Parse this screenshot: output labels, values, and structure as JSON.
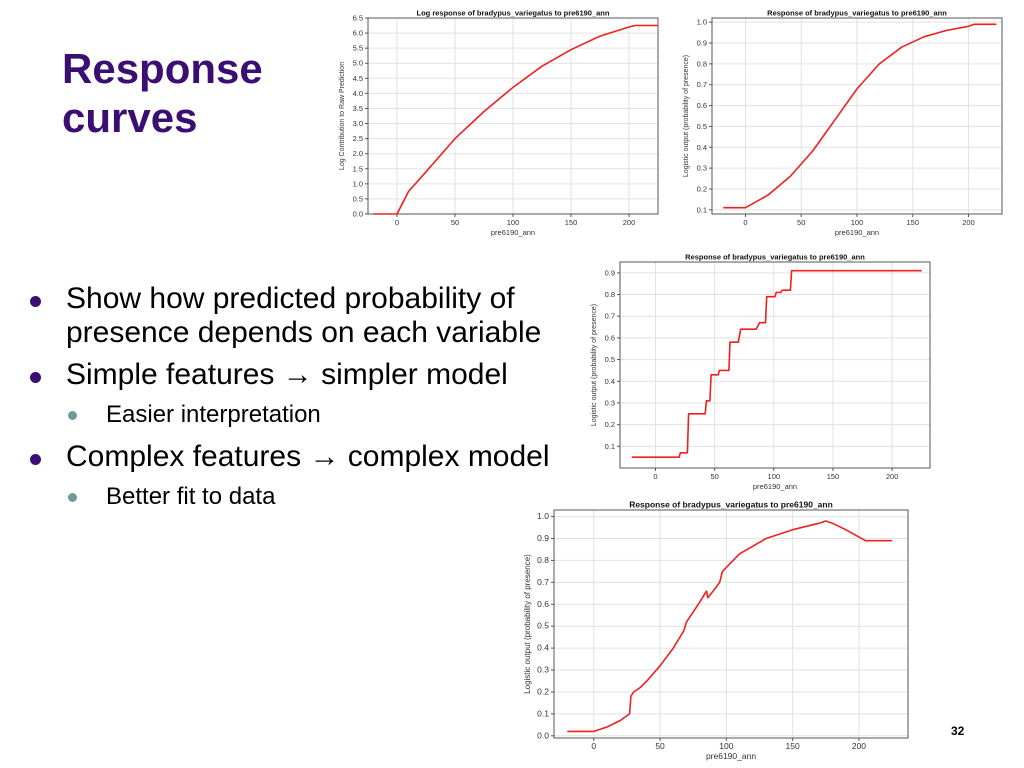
{
  "slide": {
    "title_line1": "Response",
    "title_line2": "curves",
    "bullets": [
      "Show how predicted probability of presence depends on each variable",
      "Simple features → simpler model",
      "Complex features → complex model"
    ],
    "sub_bullets": [
      "Easier interpretation",
      "Better fit to data"
    ],
    "page_number": "32",
    "colors": {
      "title": "#3b0f72",
      "bullet": "#3b0f72",
      "sub_bullet": "#6f9a9a",
      "curve": "#ee2020"
    }
  },
  "chart_data": [
    {
      "type": "line",
      "title": "Log response of bradypus_variegatus to pre6190_ann",
      "xlabel": "pre6190_ann",
      "ylabel": "Log Contribution to Raw Prediction",
      "xlim": [
        -25,
        225
      ],
      "ylim": [
        0,
        6.5
      ],
      "xticks": [
        0,
        50,
        100,
        150,
        200
      ],
      "xtick_labels": [
        "0",
        "50",
        "100",
        "150",
        "200"
      ],
      "yticks": [
        0,
        0.5,
        1,
        1.5,
        2,
        2.5,
        3,
        3.5,
        4,
        4.5,
        5,
        5.5,
        6,
        6.5
      ],
      "ytick_labels": [
        "0.0",
        "0.5",
        "1.0",
        "1.5",
        "2.0",
        "2.5",
        "3.0",
        "3.5",
        "4.0",
        "4.5",
        "5.0",
        "5.5",
        "6.0",
        "6.5"
      ],
      "grid": true,
      "series": [
        {
          "x": [
            -20,
            0,
            10,
            25,
            50,
            75,
            100,
            125,
            150,
            175,
            200,
            205,
            225
          ],
          "y": [
            0,
            0,
            0.75,
            1.4,
            2.5,
            3.4,
            4.2,
            4.9,
            5.45,
            5.9,
            6.2,
            6.25,
            6.25
          ]
        }
      ]
    },
    {
      "type": "line",
      "title": "Response of bradypus_variegatus to pre6190_ann",
      "xlabel": "pre6190_ann",
      "ylabel": "Logistic output (probability of presence)",
      "xlim": [
        -30,
        230
      ],
      "ylim": [
        0.08,
        1.02
      ],
      "xticks": [
        0,
        50,
        100,
        150,
        200
      ],
      "xtick_labels": [
        "0",
        "50",
        "100",
        "150",
        "200"
      ],
      "yticks": [
        0.1,
        0.2,
        0.3,
        0.4,
        0.5,
        0.6,
        0.7,
        0.8,
        0.9,
        1.0
      ],
      "ytick_labels": [
        "0.1",
        "0.2",
        "0.3",
        "0.4",
        "0.5",
        "0.6",
        "0.7",
        "0.8",
        "0.9",
        "1.0"
      ],
      "grid": true,
      "series": [
        {
          "x": [
            -20,
            0,
            20,
            40,
            60,
            80,
            100,
            120,
            140,
            160,
            180,
            200,
            205,
            225
          ],
          "y": [
            0.11,
            0.11,
            0.17,
            0.26,
            0.38,
            0.53,
            0.68,
            0.8,
            0.88,
            0.93,
            0.96,
            0.98,
            0.99,
            0.99
          ]
        }
      ]
    },
    {
      "type": "line",
      "title": "Response of bradypus_variegatus to pre6190_ann",
      "xlabel": "pre6190_ann",
      "ylabel": "Logistic output (probability of presence)",
      "xlim": [
        -30,
        232
      ],
      "ylim": [
        0,
        0.95
      ],
      "xticks": [
        0,
        50,
        100,
        150,
        200
      ],
      "xtick_labels": [
        "0",
        "50",
        "100",
        "150",
        "200"
      ],
      "yticks": [
        0.1,
        0.2,
        0.3,
        0.4,
        0.5,
        0.6,
        0.7,
        0.8,
        0.9
      ],
      "ytick_labels": [
        "0.1",
        "0.2",
        "0.3",
        "0.4",
        "0.5",
        "0.6",
        "0.7",
        "0.8",
        "0.9"
      ],
      "grid": true,
      "series": [
        {
          "x": [
            -20,
            20,
            21,
            27,
            28,
            42,
            43,
            46,
            47,
            53,
            54,
            62,
            63,
            70,
            72,
            85,
            88,
            93,
            94,
            101,
            102,
            106,
            107,
            114,
            115,
            225
          ],
          "y": [
            0.05,
            0.05,
            0.07,
            0.07,
            0.25,
            0.25,
            0.31,
            0.31,
            0.43,
            0.43,
            0.45,
            0.45,
            0.58,
            0.58,
            0.64,
            0.64,
            0.67,
            0.67,
            0.79,
            0.79,
            0.81,
            0.81,
            0.82,
            0.82,
            0.91,
            0.91
          ]
        }
      ]
    },
    {
      "type": "line",
      "title": "Response of bradypus_variegatus to pre6190_ann",
      "xlabel": "pre6190_ann",
      "ylabel": "Logistic output (probability of presence)",
      "xlim": [
        -30,
        237
      ],
      "ylim": [
        -0.01,
        1.03
      ],
      "xticks": [
        0,
        50,
        100,
        150,
        200
      ],
      "xtick_labels": [
        "0",
        "50",
        "100",
        "150",
        "200"
      ],
      "yticks": [
        0,
        0.1,
        0.2,
        0.3,
        0.4,
        0.5,
        0.6,
        0.7,
        0.8,
        0.9,
        1.0
      ],
      "ytick_labels": [
        "0.0",
        "0.1",
        "0.2",
        "0.3",
        "0.4",
        "0.5",
        "0.6",
        "0.7",
        "0.8",
        "0.9",
        "1.0"
      ],
      "grid": true,
      "series": [
        {
          "x": [
            -20,
            0,
            10,
            20,
            27,
            28,
            30,
            35,
            40,
            50,
            60,
            68,
            70,
            80,
            85,
            86,
            90,
            95,
            97,
            110,
            130,
            150,
            170,
            175,
            180,
            190,
            205,
            225
          ],
          "y": [
            0.02,
            0.02,
            0.04,
            0.07,
            0.1,
            0.18,
            0.2,
            0.22,
            0.25,
            0.32,
            0.4,
            0.48,
            0.52,
            0.61,
            0.66,
            0.63,
            0.66,
            0.7,
            0.75,
            0.83,
            0.9,
            0.94,
            0.97,
            0.98,
            0.97,
            0.94,
            0.89,
            0.89
          ]
        }
      ]
    }
  ]
}
